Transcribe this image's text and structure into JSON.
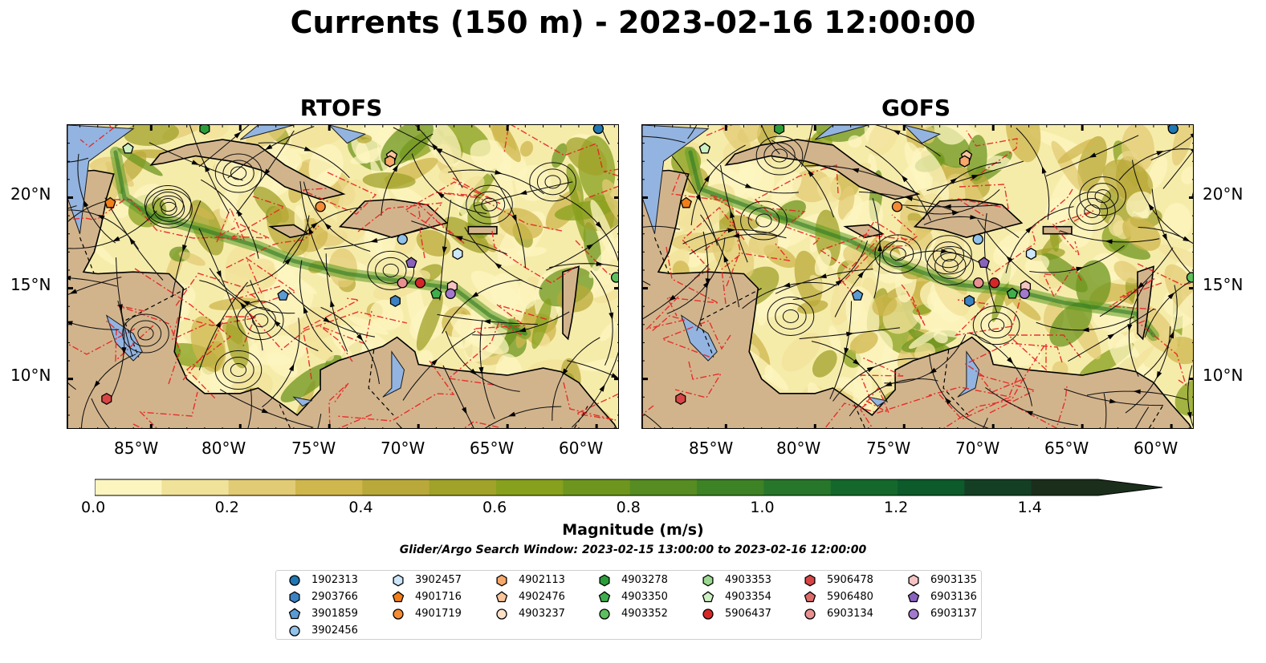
{
  "title": "Currents (150 m) - 2023-02-16 12:00:00",
  "panels": [
    {
      "name": "RTOFS"
    },
    {
      "name": "GOFS"
    }
  ],
  "lat_ticks": [
    "20°N",
    "15°N",
    "10°N"
  ],
  "lon_ticks": [
    "85°W",
    "80°W",
    "75°W",
    "70°W",
    "65°W",
    "60°W"
  ],
  "colorbar": {
    "label": "Magnitude (m/s)",
    "min": 0.0,
    "max": 1.5,
    "tick_labels": [
      "0.0",
      "0.2",
      "0.4",
      "0.6",
      "0.8",
      "1.0",
      "1.2",
      "1.4"
    ],
    "colors": [
      "#fdf5c0",
      "#f1e29a",
      "#e1cb74",
      "#cfb74e",
      "#b9a93a",
      "#a0a22a",
      "#87a01e",
      "#6e961f",
      "#568c22",
      "#3e8226",
      "#27762b",
      "#15682c",
      "#0d5a2a",
      "#143f24",
      "#1b2e1c"
    ]
  },
  "search_window": "Glider/Argo Search Window: 2023-02-15 13:00:00 to 2023-02-16 12:00:00",
  "legend": [
    {
      "id": "1902313",
      "shape": "circle",
      "color": "#1f77b4"
    },
    {
      "id": "2903766",
      "shape": "hexagon",
      "color": "#3b82c4"
    },
    {
      "id": "3901859",
      "shape": "pentagon",
      "color": "#5b9bd5"
    },
    {
      "id": "3902456",
      "shape": "circle",
      "color": "#90c2ea"
    },
    {
      "id": "3902457",
      "shape": "hexagon",
      "color": "#cce6fa"
    },
    {
      "id": "4901716",
      "shape": "pentagon",
      "color": "#f07f1a"
    },
    {
      "id": "4901719",
      "shape": "circle",
      "color": "#f58b33"
    },
    {
      "id": "4902113",
      "shape": "hexagon",
      "color": "#f7a86a"
    },
    {
      "id": "4902476",
      "shape": "pentagon",
      "color": "#fac59a"
    },
    {
      "id": "4903237",
      "shape": "circle",
      "color": "#fde0c8"
    },
    {
      "id": "4903278",
      "shape": "hexagon",
      "color": "#2a9d3a"
    },
    {
      "id": "4903350",
      "shape": "pentagon",
      "color": "#3fae4c"
    },
    {
      "id": "4903352",
      "shape": "circle",
      "color": "#5cc05e"
    },
    {
      "id": "4903353",
      "shape": "hexagon",
      "color": "#9ad98f"
    },
    {
      "id": "4903354",
      "shape": "pentagon",
      "color": "#cdf0c2"
    },
    {
      "id": "5906437",
      "shape": "circle",
      "color": "#d62728"
    },
    {
      "id": "5906478",
      "shape": "hexagon",
      "color": "#d94545"
    },
    {
      "id": "5906480",
      "shape": "pentagon",
      "color": "#e06a6a"
    },
    {
      "id": "6903134",
      "shape": "circle",
      "color": "#ea9090"
    },
    {
      "id": "6903135",
      "shape": "hexagon",
      "color": "#f6c3c3"
    },
    {
      "id": "6903136",
      "shape": "pentagon",
      "color": "#8a62be"
    },
    {
      "id": "6903137",
      "shape": "circle",
      "color": "#a279cc"
    }
  ]
}
